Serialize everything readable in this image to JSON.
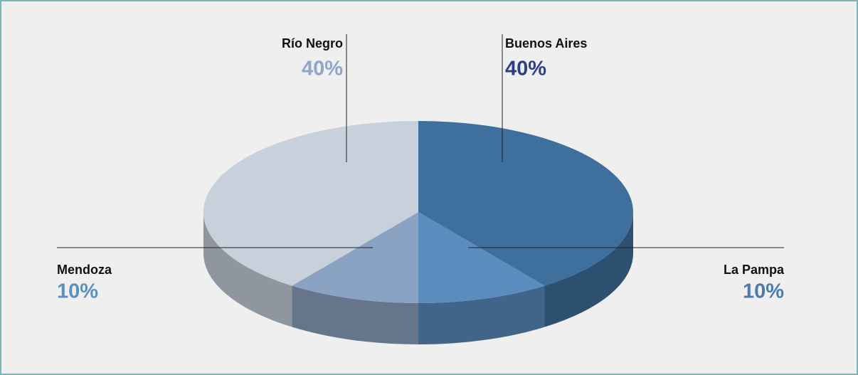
{
  "chart_data": {
    "type": "pie",
    "categories": [
      "Buenos Aires",
      "La Pampa",
      "Mendoza",
      "Río Negro"
    ],
    "values": [
      40,
      10,
      10,
      40
    ],
    "value_labels": [
      "40%",
      "10%",
      "10%",
      "40%"
    ],
    "colors": [
      "#3f6f9d",
      "#5a8cbd",
      "#8ba3c3",
      "#c8d0dc"
    ],
    "label_colors": [
      "#2b3f87",
      "#4c7aab",
      "#5b8fc0",
      "#8ea6c8"
    ]
  }
}
